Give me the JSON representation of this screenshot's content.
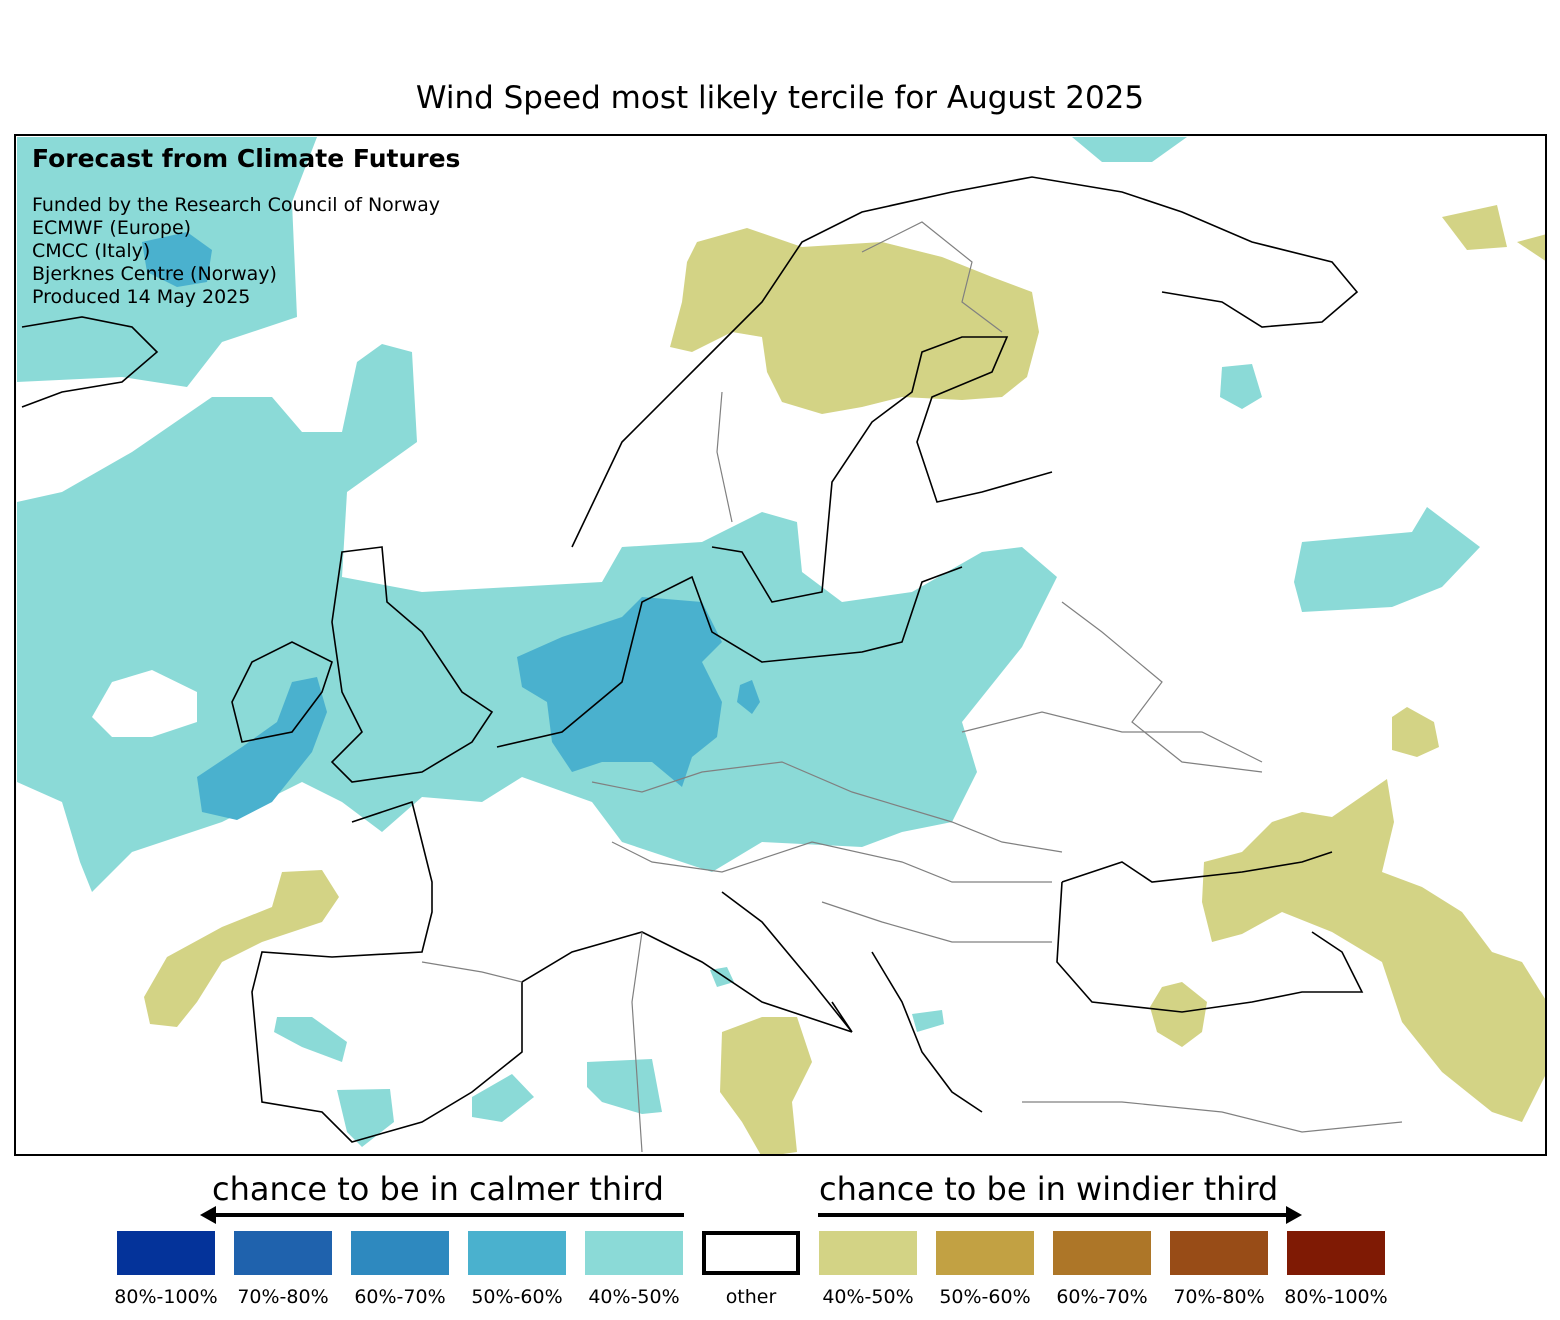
{
  "title": "Wind Speed most likely tercile for August 2025",
  "info": {
    "heading": "Forecast from Climate Futures",
    "lines": [
      "Funded by the Research Council of Norway",
      "ECMWF (Europe)",
      "CMCC (Italy)",
      "Bjerknes Centre (Norway)",
      "Produced 14 May 2025"
    ]
  },
  "legend": {
    "calmer_label": "chance to be in calmer third",
    "windier_label": "chance to be in windier third",
    "items": [
      {
        "label": "80%-100%",
        "color": "#04339a"
      },
      {
        "label": "70%-80%",
        "color": "#1f62ad"
      },
      {
        "label": "60%-70%",
        "color": "#2e89bf"
      },
      {
        "label": "50%-60%",
        "color": "#4ab1ce"
      },
      {
        "label": "40%-50%",
        "color": "#8bdad7"
      },
      {
        "label": "other",
        "color": "#ffffff"
      },
      {
        "label": "40%-50%",
        "color": "#d3d385"
      },
      {
        "label": "50%-60%",
        "color": "#c2a143"
      },
      {
        "label": "60%-70%",
        "color": "#ad7628"
      },
      {
        "label": "70%-80%",
        "color": "#984c17"
      },
      {
        "label": "80%-100%",
        "color": "#7f1a04"
      }
    ]
  }
}
